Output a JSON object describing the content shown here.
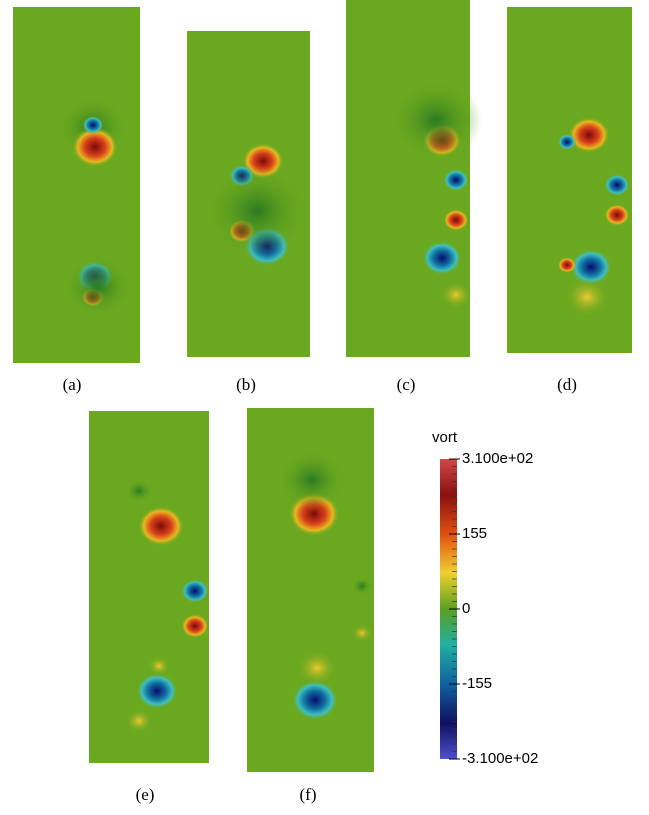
{
  "panels": [
    {
      "label": "(a)"
    },
    {
      "label": "(b)"
    },
    {
      "label": "(c)"
    },
    {
      "label": "(d)"
    },
    {
      "label": "(e)"
    },
    {
      "label": "(f)"
    }
  ],
  "colorbar": {
    "title": "vort",
    "lim": [
      -310,
      310
    ],
    "ticks": [
      {
        "value": 310,
        "label": "3.100e+02"
      },
      155,
      0,
      -155,
      {
        "value": -310,
        "label": "-3.100e+02"
      }
    ]
  }
}
